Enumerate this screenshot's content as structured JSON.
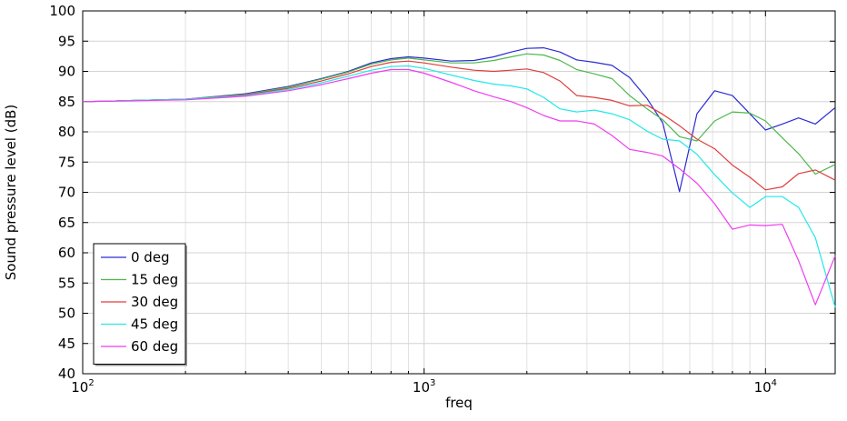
{
  "chart_data": {
    "type": "line",
    "title": "",
    "xlabel": "freq",
    "ylabel": "Sound pressure level (dB)",
    "xscale": "log",
    "xlim": [
      100,
      16000
    ],
    "ylim": [
      40,
      100
    ],
    "yticks": [
      "40",
      "45",
      "50",
      "55",
      "60",
      "65",
      "70",
      "75",
      "80",
      "85",
      "90",
      "95",
      "100"
    ],
    "xticks": [
      {
        "base": "10",
        "exp": "2",
        "value": 100
      },
      {
        "base": "10",
        "exp": "3",
        "value": 1000
      },
      {
        "base": "10",
        "exp": "4",
        "value": 10000
      }
    ],
    "grid": true,
    "legend_position": "bottom-left",
    "series": [
      {
        "name": "0 deg",
        "color": "#2b2bd6",
        "points": [
          [
            100,
            85.0
          ],
          [
            200,
            85.4
          ],
          [
            300,
            86.3
          ],
          [
            400,
            87.5
          ],
          [
            500,
            88.8
          ],
          [
            600,
            90.0
          ],
          [
            700,
            91.4
          ],
          [
            800,
            92.1
          ],
          [
            900,
            92.4
          ],
          [
            1000,
            92.2
          ],
          [
            1200,
            91.7
          ],
          [
            1400,
            91.8
          ],
          [
            1600,
            92.4
          ],
          [
            1800,
            93.2
          ],
          [
            2000,
            93.8
          ],
          [
            2240,
            93.9
          ],
          [
            2500,
            93.2
          ],
          [
            2800,
            91.9
          ],
          [
            3150,
            91.5
          ],
          [
            3550,
            91.0
          ],
          [
            4000,
            89.0
          ],
          [
            4500,
            85.5
          ],
          [
            5000,
            81.5
          ],
          [
            5600,
            70.1
          ],
          [
            6300,
            83.0
          ],
          [
            7100,
            86.8
          ],
          [
            8000,
            86.0
          ],
          [
            9000,
            83.0
          ],
          [
            10000,
            80.3
          ],
          [
            11200,
            81.3
          ],
          [
            12500,
            82.3
          ],
          [
            14000,
            81.3
          ],
          [
            16000,
            84.0
          ]
        ]
      },
      {
        "name": "15 deg",
        "color": "#4cb84c",
        "points": [
          [
            100,
            85.0
          ],
          [
            200,
            85.4
          ],
          [
            300,
            86.2
          ],
          [
            400,
            87.4
          ],
          [
            500,
            88.7
          ],
          [
            600,
            89.9
          ],
          [
            700,
            91.2
          ],
          [
            800,
            91.9
          ],
          [
            900,
            92.2
          ],
          [
            1000,
            91.9
          ],
          [
            1200,
            91.4
          ],
          [
            1400,
            91.4
          ],
          [
            1600,
            91.8
          ],
          [
            1800,
            92.4
          ],
          [
            2000,
            92.9
          ],
          [
            2240,
            92.7
          ],
          [
            2500,
            91.8
          ],
          [
            2800,
            90.3
          ],
          [
            3150,
            89.6
          ],
          [
            3550,
            88.8
          ],
          [
            4000,
            86.0
          ],
          [
            4500,
            83.8
          ],
          [
            5000,
            82.0
          ],
          [
            5600,
            79.2
          ],
          [
            6300,
            78.5
          ],
          [
            7100,
            81.8
          ],
          [
            8000,
            83.3
          ],
          [
            9000,
            83.1
          ],
          [
            10000,
            81.8
          ],
          [
            11200,
            79.0
          ],
          [
            12500,
            76.4
          ],
          [
            14000,
            73.0
          ],
          [
            16000,
            74.6
          ]
        ]
      },
      {
        "name": "30 deg",
        "color": "#e03c3c",
        "points": [
          [
            100,
            85.0
          ],
          [
            200,
            85.4
          ],
          [
            300,
            86.1
          ],
          [
            400,
            87.2
          ],
          [
            500,
            88.4
          ],
          [
            600,
            89.6
          ],
          [
            700,
            90.8
          ],
          [
            800,
            91.5
          ],
          [
            900,
            91.7
          ],
          [
            1000,
            91.4
          ],
          [
            1200,
            90.7
          ],
          [
            1400,
            90.2
          ],
          [
            1600,
            90.0
          ],
          [
            1800,
            90.2
          ],
          [
            2000,
            90.4
          ],
          [
            2240,
            89.8
          ],
          [
            2500,
            88.4
          ],
          [
            2800,
            86.0
          ],
          [
            3150,
            85.7
          ],
          [
            3550,
            85.2
          ],
          [
            4000,
            84.3
          ],
          [
            4500,
            84.4
          ],
          [
            5000,
            82.9
          ],
          [
            5600,
            81.0
          ],
          [
            6300,
            78.8
          ],
          [
            7100,
            77.2
          ],
          [
            8000,
            74.5
          ],
          [
            9000,
            72.5
          ],
          [
            10000,
            70.4
          ],
          [
            11200,
            70.9
          ],
          [
            12500,
            73.1
          ],
          [
            14000,
            73.7
          ],
          [
            16000,
            72.0
          ]
        ]
      },
      {
        "name": "45 deg",
        "color": "#22e8e8",
        "points": [
          [
            100,
            85.0
          ],
          [
            200,
            85.4
          ],
          [
            300,
            86.0
          ],
          [
            400,
            87.0
          ],
          [
            500,
            88.1
          ],
          [
            600,
            89.2
          ],
          [
            700,
            90.2
          ],
          [
            800,
            90.8
          ],
          [
            900,
            90.9
          ],
          [
            1000,
            90.5
          ],
          [
            1200,
            89.4
          ],
          [
            1400,
            88.5
          ],
          [
            1600,
            87.9
          ],
          [
            1800,
            87.6
          ],
          [
            2000,
            87.1
          ],
          [
            2240,
            85.7
          ],
          [
            2500,
            83.8
          ],
          [
            2800,
            83.3
          ],
          [
            3150,
            83.6
          ],
          [
            3550,
            83.0
          ],
          [
            4000,
            82.0
          ],
          [
            4500,
            80.1
          ],
          [
            5000,
            78.8
          ],
          [
            5600,
            78.5
          ],
          [
            6300,
            76.3
          ],
          [
            7100,
            72.9
          ],
          [
            8000,
            69.9
          ],
          [
            9000,
            67.5
          ],
          [
            10000,
            69.3
          ],
          [
            11200,
            69.3
          ],
          [
            12500,
            67.5
          ],
          [
            14000,
            62.5
          ],
          [
            16000,
            51.0
          ]
        ]
      },
      {
        "name": "60 deg",
        "color": "#f03cf0",
        "points": [
          [
            100,
            85.0
          ],
          [
            200,
            85.3
          ],
          [
            300,
            85.9
          ],
          [
            400,
            86.8
          ],
          [
            500,
            87.8
          ],
          [
            600,
            88.8
          ],
          [
            700,
            89.7
          ],
          [
            800,
            90.3
          ],
          [
            900,
            90.3
          ],
          [
            1000,
            89.7
          ],
          [
            1200,
            88.2
          ],
          [
            1400,
            86.8
          ],
          [
            1600,
            85.8
          ],
          [
            1800,
            85.0
          ],
          [
            2000,
            84.0
          ],
          [
            2240,
            82.7
          ],
          [
            2500,
            81.8
          ],
          [
            2800,
            81.8
          ],
          [
            3150,
            81.3
          ],
          [
            3550,
            79.4
          ],
          [
            4000,
            77.1
          ],
          [
            4500,
            76.6
          ],
          [
            5000,
            76.0
          ],
          [
            5600,
            73.9
          ],
          [
            6300,
            71.5
          ],
          [
            7100,
            68.1
          ],
          [
            8000,
            63.9
          ],
          [
            9000,
            64.6
          ],
          [
            10000,
            64.5
          ],
          [
            11200,
            64.7
          ],
          [
            12500,
            58.7
          ],
          [
            14000,
            51.4
          ],
          [
            16000,
            59.5
          ]
        ]
      }
    ]
  }
}
